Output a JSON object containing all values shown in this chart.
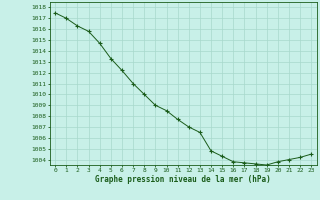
{
  "x": [
    0,
    1,
    2,
    3,
    4,
    5,
    6,
    7,
    8,
    9,
    10,
    11,
    12,
    13,
    14,
    15,
    16,
    17,
    18,
    19,
    20,
    21,
    22,
    23
  ],
  "y": [
    1017.5,
    1017.0,
    1016.3,
    1015.8,
    1014.7,
    1013.3,
    1012.2,
    1011.0,
    1010.0,
    1009.0,
    1008.5,
    1007.7,
    1007.0,
    1006.5,
    1004.8,
    1004.3,
    1003.8,
    1003.7,
    1003.6,
    1003.5,
    1003.8,
    1004.0,
    1004.2,
    1004.5
  ],
  "ylim_min": 1003.5,
  "ylim_max": 1018.5,
  "xlabel": "Graphe pression niveau de la mer (hPa)",
  "line_color": "#1a5c1a",
  "marker_color": "#1a5c1a",
  "bg_color": "#c8f0e8",
  "grid_color": "#a8d8cc",
  "axis_label_color": "#1a5c1a",
  "tick_label_color": "#1a5c1a",
  "border_color": "#1a5c1a",
  "tick_fontsize": 4.5,
  "xlabel_fontsize": 5.5
}
